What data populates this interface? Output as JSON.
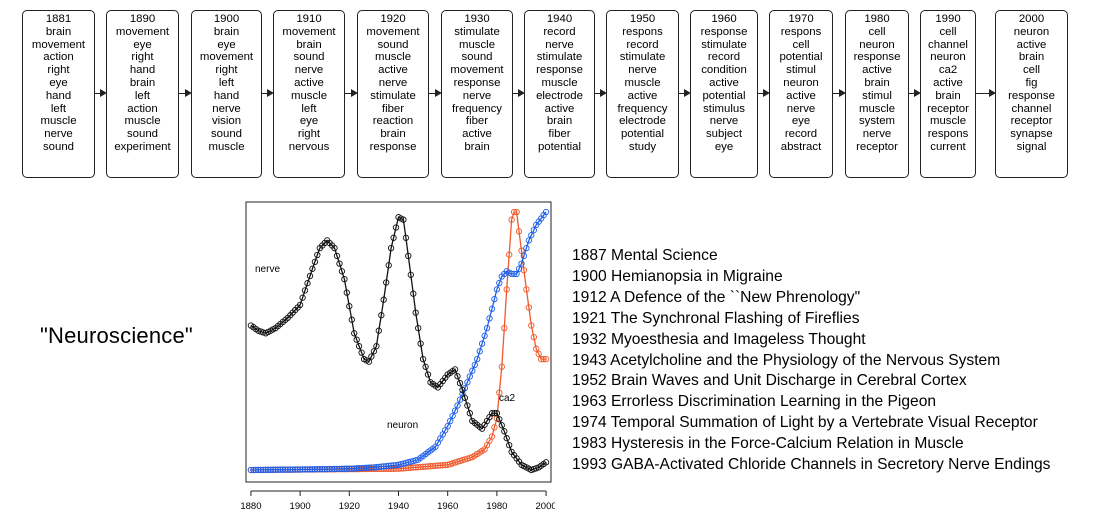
{
  "timeline": {
    "boxes": [
      {
        "year": "1881",
        "words": [
          "brain",
          "movement",
          "action",
          "right",
          "eye",
          "hand",
          "left",
          "muscle",
          "nerve",
          "sound"
        ]
      },
      {
        "year": "1890",
        "words": [
          "movement",
          "eye",
          "right",
          "hand",
          "brain",
          "left",
          "action",
          "muscle",
          "sound",
          "experiment"
        ]
      },
      {
        "year": "1900",
        "words": [
          "brain",
          "eye",
          "movement",
          "right",
          "left",
          "hand",
          "nerve",
          "vision",
          "sound",
          "muscle"
        ]
      },
      {
        "year": "1910",
        "words": [
          "movement",
          "brain",
          "sound",
          "nerve",
          "active",
          "muscle",
          "left",
          "eye",
          "right",
          "nervous"
        ]
      },
      {
        "year": "1920",
        "words": [
          "movement",
          "sound",
          "muscle",
          "active",
          "nerve",
          "stimulate",
          "fiber",
          "reaction",
          "brain",
          "response"
        ]
      },
      {
        "year": "1930",
        "words": [
          "stimulate",
          "muscle",
          "sound",
          "movement",
          "response",
          "nerve",
          "frequency",
          "fiber",
          "active",
          "brain"
        ]
      },
      {
        "year": "1940",
        "words": [
          "record",
          "nerve",
          "stimulate",
          "response",
          "muscle",
          "electrode",
          "active",
          "brain",
          "fiber",
          "potential"
        ]
      },
      {
        "year": "1950",
        "words": [
          "respons",
          "record",
          "stimulate",
          "nerve",
          "muscle",
          "active",
          "frequency",
          "electrode",
          "potential",
          "study"
        ]
      },
      {
        "year": "1960",
        "words": [
          "response",
          "stimulate",
          "record",
          "condition",
          "active",
          "potential",
          "stimulus",
          "nerve",
          "subject",
          "eye"
        ]
      },
      {
        "year": "1970",
        "words": [
          "respons",
          "cell",
          "potential",
          "stimul",
          "neuron",
          "active",
          "nerve",
          "eye",
          "record",
          "abstract"
        ]
      },
      {
        "year": "1980",
        "words": [
          "cell",
          "neuron",
          "response",
          "active",
          "brain",
          "stimul",
          "muscle",
          "system",
          "nerve",
          "receptor"
        ]
      },
      {
        "year": "1990",
        "words": [
          "cell",
          "channel",
          "neuron",
          "ca2",
          "active",
          "brain",
          "receptor",
          "muscle",
          "respons",
          "current"
        ]
      },
      {
        "year": "2000",
        "words": [
          "neuron",
          "active",
          "brain",
          "cell",
          "fig",
          "response",
          "channel",
          "receptor",
          "synapse",
          "signal"
        ]
      }
    ]
  },
  "heading": "\"Neuroscience\"",
  "chart_data": {
    "type": "line",
    "xlim": [
      1878,
      2002
    ],
    "ylim": [
      0,
      1
    ],
    "x_ticks": [
      "1880",
      "1900",
      "1920",
      "1940",
      "1960",
      "1980",
      "2000"
    ],
    "series": [
      {
        "name": "nerve",
        "color": "#111111",
        "x": [
          1880,
          1883,
          1886,
          1890,
          1895,
          1900,
          1905,
          1908,
          1911,
          1914,
          1918,
          1922,
          1926,
          1928,
          1931,
          1934,
          1937,
          1940,
          1942,
          1944,
          1947,
          1950,
          1953,
          1956,
          1960,
          1963,
          1966,
          1970,
          1974,
          1978,
          1980,
          1983,
          1986,
          1990,
          1994,
          1997,
          2000
        ],
        "y": [
          0.56,
          0.54,
          0.53,
          0.55,
          0.59,
          0.64,
          0.78,
          0.86,
          0.89,
          0.86,
          0.74,
          0.53,
          0.43,
          0.42,
          0.48,
          0.66,
          0.86,
          0.98,
          0.97,
          0.83,
          0.61,
          0.43,
          0.34,
          0.32,
          0.37,
          0.39,
          0.31,
          0.19,
          0.16,
          0.22,
          0.22,
          0.15,
          0.07,
          0.02,
          0.0,
          0.01,
          0.03
        ]
      },
      {
        "name": "neuron",
        "color": "#1f5fe8",
        "x": [
          1880,
          1900,
          1920,
          1930,
          1940,
          1948,
          1955,
          1960,
          1964,
          1968,
          1972,
          1976,
          1980,
          1982,
          1984,
          1986,
          1988,
          1990,
          1993,
          1996,
          2000
        ],
        "y": [
          0.0,
          0.002,
          0.005,
          0.01,
          0.02,
          0.04,
          0.09,
          0.17,
          0.25,
          0.34,
          0.43,
          0.55,
          0.7,
          0.75,
          0.77,
          0.76,
          0.76,
          0.8,
          0.89,
          0.95,
          1.0
        ]
      },
      {
        "name": "ca2",
        "color": "#f0592b",
        "x": [
          1880,
          1940,
          1960,
          1970,
          1975,
          1978,
          1980,
          1982,
          1984,
          1986,
          1987,
          1988,
          1990,
          1992,
          1994,
          1996,
          1998,
          2000
        ],
        "y": [
          0.0,
          0.005,
          0.02,
          0.05,
          0.08,
          0.13,
          0.2,
          0.4,
          0.7,
          0.97,
          1.0,
          1.0,
          0.85,
          0.7,
          0.56,
          0.47,
          0.43,
          0.43
        ]
      }
    ],
    "labels": [
      {
        "text": "nerve",
        "series": "nerve"
      },
      {
        "text": "neuron",
        "series": "neuron"
      },
      {
        "text": "ca2",
        "series": "ca2"
      }
    ]
  },
  "titles": [
    "1887 Mental Science",
    "1900 Hemianopsia in Migraine",
    "1912 A Defence of the ``New Phrenology\"",
    "1921 The Synchronal Flashing of Fireflies",
    "1932 Myoesthesia and Imageless Thought",
    "1943 Acetylcholine and the Physiology of the Nervous System",
    "1952 Brain Waves and Unit Discharge in Cerebral Cortex",
    "1963 Errorless Discrimination Learning in the Pigeon",
    "1974 Temporal Summation of Light by a Vertebrate Visual Receptor",
    "1983 Hysteresis in the Force-Calcium Relation in Muscle",
    "1993 GABA-Activated Chloride Channels in Secretory Nerve Endings"
  ]
}
